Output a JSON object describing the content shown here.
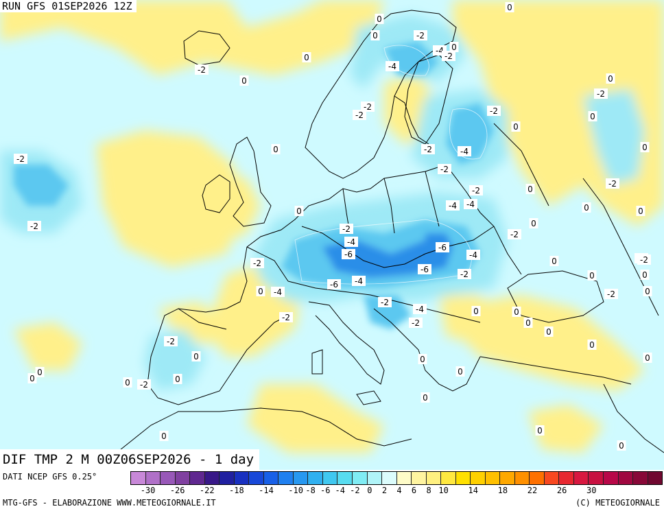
{
  "header": {
    "run_label": "RUN GFS 01SEP2026 12Z"
  },
  "map_title": "DIF TMP 2 M 00Z06SEP2026 - 1 day",
  "source_label": "DATI NCEP GFS 0.25°",
  "credit_left": "MTG-GFS - ELABORAZIONE WWW.METEOGIORNALE.IT",
  "credit_right": "(C) METEOGIORNALE",
  "colorbar": {
    "colors": [
      "#c888d8",
      "#b070c8",
      "#9858b8",
      "#8040a0",
      "#602890",
      "#381888",
      "#2020a0",
      "#1830c0",
      "#1848d8",
      "#1860e8",
      "#2080f0",
      "#2898f0",
      "#30b0f0",
      "#40c8f0",
      "#58dcf0",
      "#80ecf4",
      "#b0f4f8",
      "#dcfcfc",
      "#fffcc8",
      "#fff4a0",
      "#fff080",
      "#ffe840",
      "#ffe000",
      "#ffd000",
      "#ffc000",
      "#ffa800",
      "#ff9000",
      "#ff7000",
      "#f84820",
      "#e82830",
      "#d81840",
      "#c81040",
      "#b80848",
      "#a00840",
      "#880838",
      "#700830"
    ],
    "tick_labels": [
      "-30",
      "-26",
      "-22",
      "-18",
      "-14",
      "-10",
      "-8",
      "-6",
      "-4",
      "-2",
      "0",
      "2",
      "4",
      "6",
      "8",
      "10",
      "14",
      "18",
      "22",
      "26",
      "30"
    ]
  },
  "colors": {
    "land_outline": "#000000",
    "warm": "#fff08a",
    "cool": "#cffaff",
    "cold": "#5cc8f0",
    "very_cold": "#2a8ee8"
  },
  "map_labels": [
    {
      "text": "0"
    },
    {
      "text": "-2"
    },
    {
      "text": "0"
    },
    {
      "text": "0"
    },
    {
      "text": "-2"
    },
    {
      "text": "-4"
    },
    {
      "text": "0"
    },
    {
      "text": "-2"
    },
    {
      "text": "-4"
    },
    {
      "text": "-2"
    },
    {
      "text": "0"
    },
    {
      "text": "0"
    },
    {
      "text": "-2"
    },
    {
      "text": "0"
    },
    {
      "text": "-2"
    },
    {
      "text": "-2"
    },
    {
      "text": "-2"
    },
    {
      "text": "0"
    },
    {
      "text": "-2"
    },
    {
      "text": "0"
    },
    {
      "text": "-2"
    },
    {
      "text": "-4"
    },
    {
      "text": "-2"
    },
    {
      "text": "-2"
    },
    {
      "text": "0"
    },
    {
      "text": "-2"
    },
    {
      "text": "0"
    },
    {
      "text": "-2"
    },
    {
      "text": "0"
    },
    {
      "text": "-4"
    },
    {
      "text": "-4"
    },
    {
      "text": "0"
    },
    {
      "text": "0"
    },
    {
      "text": "-2"
    },
    {
      "text": "-2"
    },
    {
      "text": "-4"
    },
    {
      "text": "-6"
    },
    {
      "text": "-6"
    },
    {
      "text": "-4"
    },
    {
      "text": "-2"
    },
    {
      "text": "-2"
    },
    {
      "text": "0"
    },
    {
      "text": "-2"
    },
    {
      "text": "0"
    },
    {
      "text": "-4"
    },
    {
      "text": "-6"
    },
    {
      "text": "-4"
    },
    {
      "text": "-6"
    },
    {
      "text": "0"
    },
    {
      "text": "-2"
    },
    {
      "text": "0"
    },
    {
      "text": "-2"
    },
    {
      "text": "-4"
    },
    {
      "text": "0"
    },
    {
      "text": "-2"
    },
    {
      "text": "0"
    },
    {
      "text": "-2"
    },
    {
      "text": "0"
    },
    {
      "text": "0"
    },
    {
      "text": "0"
    },
    {
      "text": "0"
    },
    {
      "text": "0"
    },
    {
      "text": "0"
    },
    {
      "text": "0"
    },
    {
      "text": "0"
    },
    {
      "text": "-2"
    },
    {
      "text": "0"
    },
    {
      "text": "0"
    },
    {
      "text": "0"
    },
    {
      "text": "0"
    },
    {
      "text": "0"
    },
    {
      "text": "0"
    },
    {
      "text": "0"
    },
    {
      "text": "0"
    },
    {
      "text": "-2"
    },
    {
      "text": "0"
    },
    {
      "text": "0"
    }
  ]
}
